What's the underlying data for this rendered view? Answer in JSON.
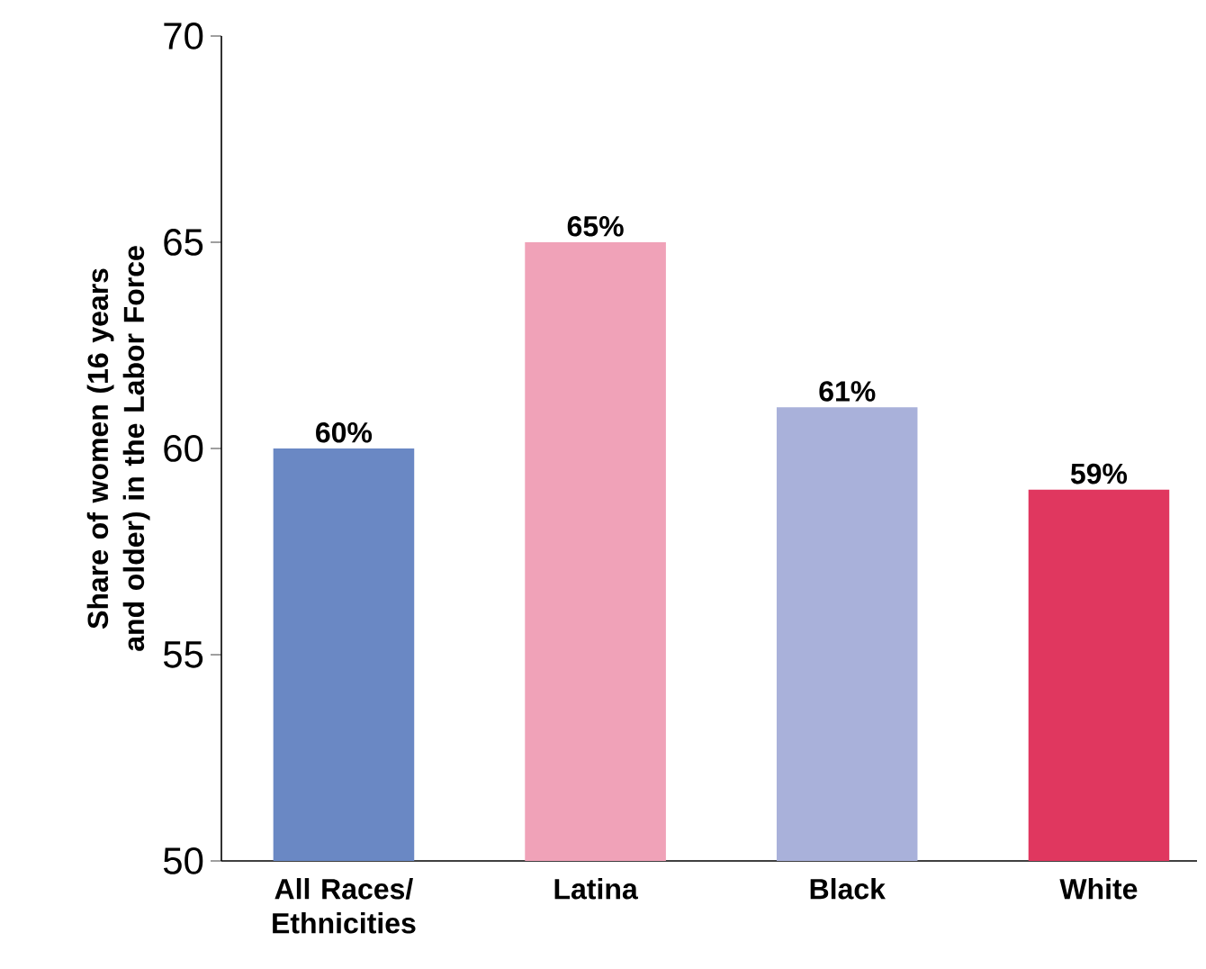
{
  "chart_data": {
    "type": "bar",
    "ylabel": "Share of women (16 years and older) in the Labor Force",
    "categories": [
      "All Races/ Ethnicities",
      "Latina",
      "Black",
      "White"
    ],
    "values": [
      60,
      65,
      61,
      59
    ],
    "colors": [
      "#6a88c4",
      "#f0a2b8",
      "#a9b1da",
      "#e0375f"
    ],
    "value_labels": [
      "60%",
      "65%",
      "61%",
      "59%"
    ],
    "ylim": [
      50,
      70
    ],
    "yticks": [
      50,
      55,
      60,
      65,
      70
    ]
  }
}
